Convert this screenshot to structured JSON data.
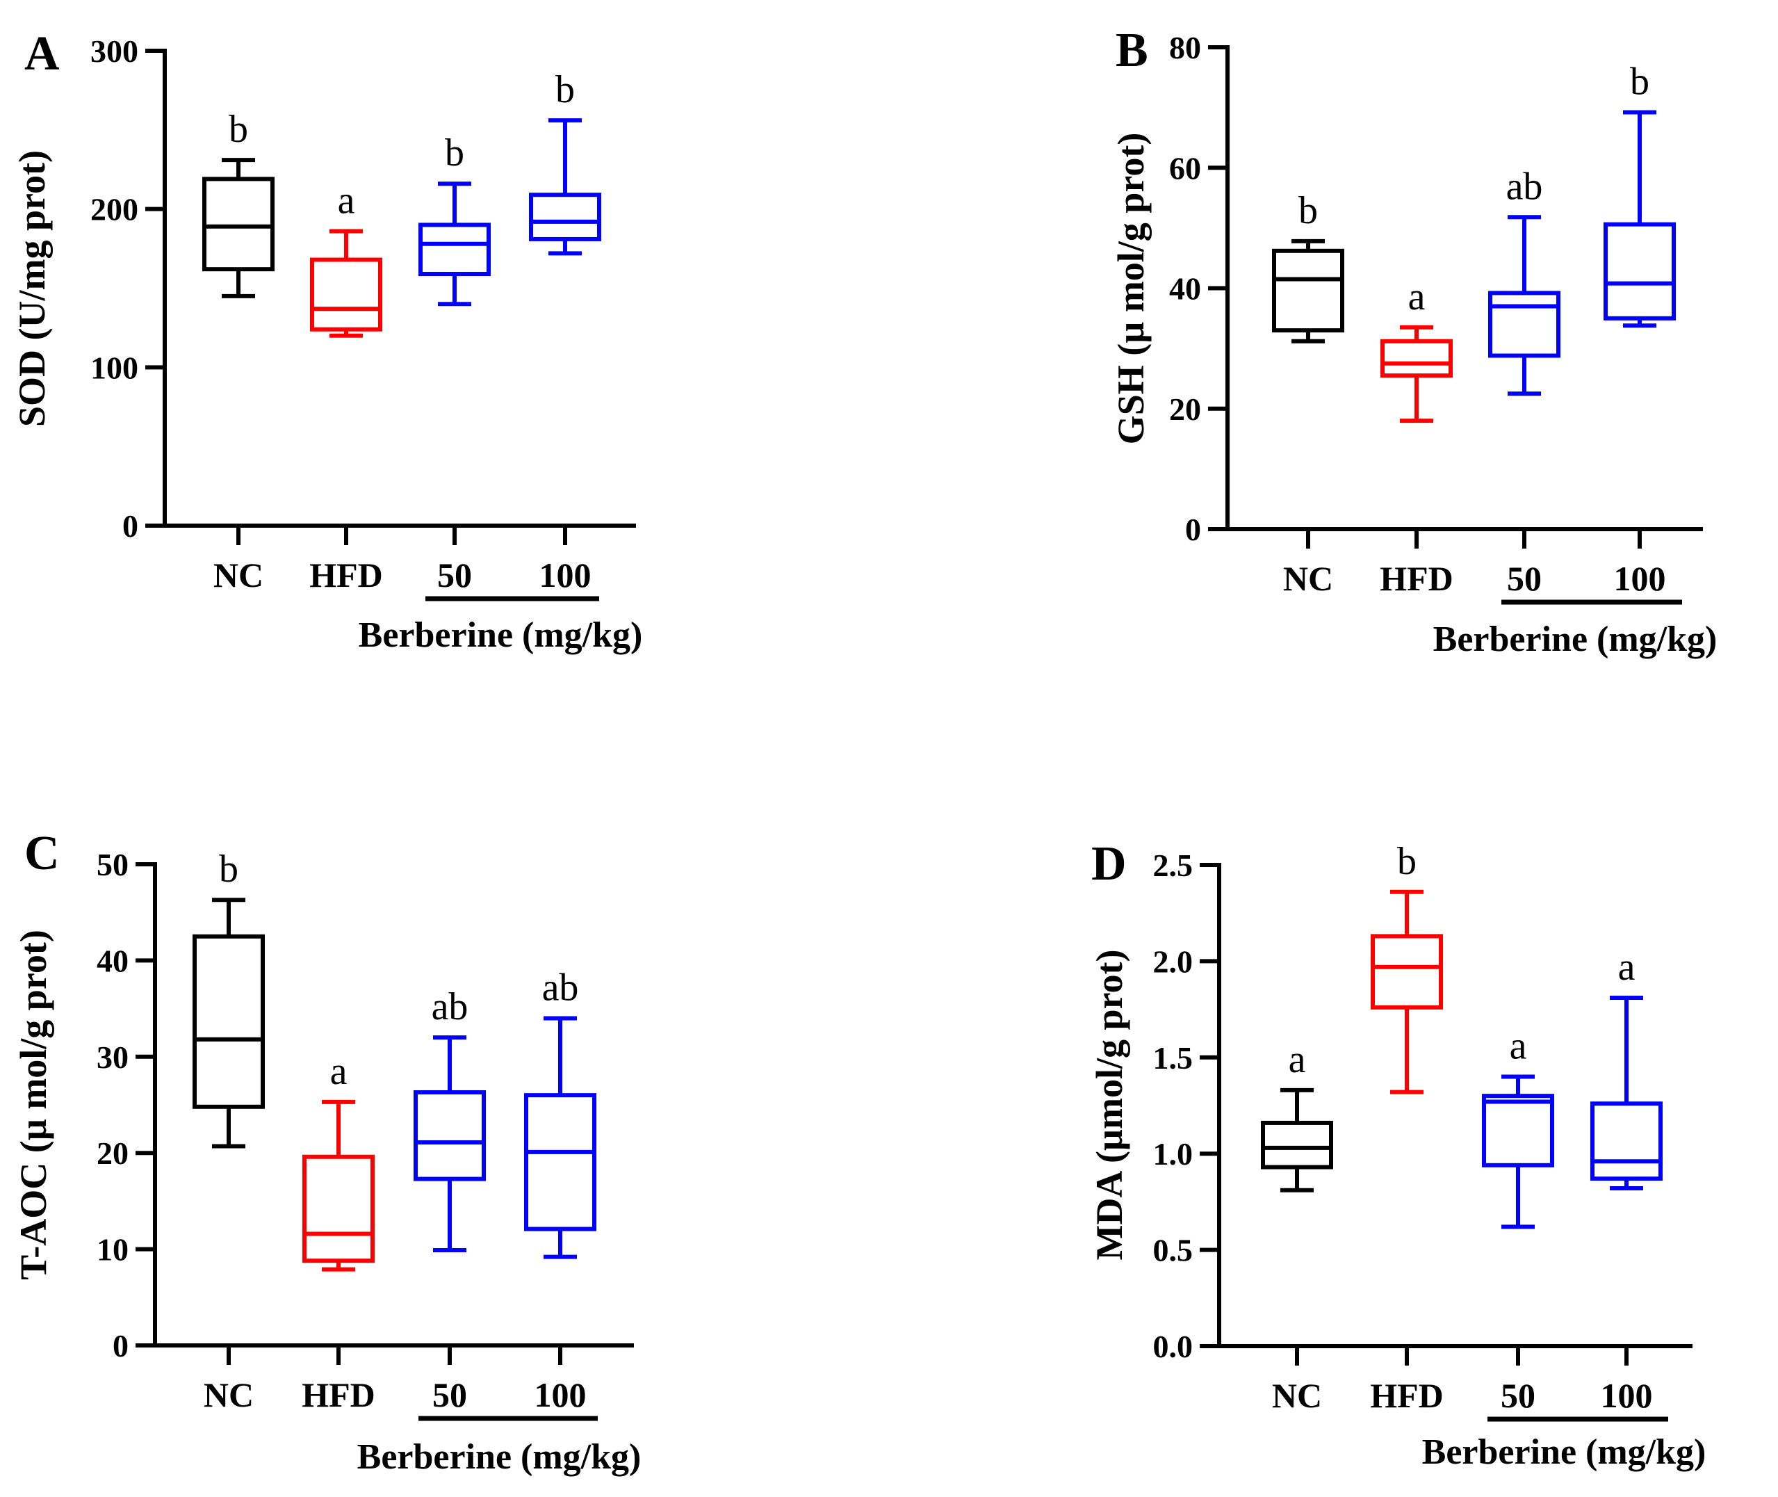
{
  "chart_data": [
    {
      "type": "box",
      "panel": "A",
      "ylabel": "SOD (U/mg prot)",
      "ylim": [
        0,
        300
      ],
      "yticks": [
        "0",
        "100",
        "200",
        "300"
      ],
      "categories": [
        "NC",
        "HFD",
        "50",
        "100"
      ],
      "group_label": "Berberine (mg/kg)",
      "grouped_categories": [
        "50",
        "100"
      ],
      "series": [
        {
          "name": "NC",
          "color": "#000000",
          "min": 145,
          "q1": 162,
          "median": 189,
          "q3": 219,
          "max": 231,
          "label": "b"
        },
        {
          "name": "HFD",
          "color": "#ff0000",
          "min": 120,
          "q1": 124,
          "median": 137,
          "q3": 168,
          "max": 186,
          "label": "a"
        },
        {
          "name": "50",
          "color": "#0000ff",
          "min": 140,
          "q1": 159,
          "median": 178,
          "q3": 190,
          "max": 216,
          "label": "b"
        },
        {
          "name": "100",
          "color": "#0000ff",
          "min": 172,
          "q1": 181,
          "median": 192,
          "q3": 209,
          "max": 256,
          "label": "b"
        }
      ]
    },
    {
      "type": "box",
      "panel": "B",
      "ylabel": "GSH (µ mol/g prot)",
      "ylim": [
        0,
        80
      ],
      "yticks": [
        "0",
        "20",
        "40",
        "60",
        "80"
      ],
      "categories": [
        "NC",
        "HFD",
        "50",
        "100"
      ],
      "group_label": "Berberine (mg/kg)",
      "grouped_categories": [
        "50",
        "100"
      ],
      "series": [
        {
          "name": "NC",
          "color": "#000000",
          "min": 31.2,
          "q1": 33.0,
          "median": 41.5,
          "q3": 46.2,
          "max": 47.8,
          "label": "b"
        },
        {
          "name": "HFD",
          "color": "#ff0000",
          "min": 18.0,
          "q1": 25.5,
          "median": 27.5,
          "q3": 31.2,
          "max": 33.5,
          "label": "a"
        },
        {
          "name": "50",
          "color": "#0000ff",
          "min": 22.5,
          "q1": 28.8,
          "median": 37.0,
          "q3": 39.2,
          "max": 51.8,
          "label": "ab"
        },
        {
          "name": "100",
          "color": "#0000ff",
          "min": 33.8,
          "q1": 35.0,
          "median": 40.8,
          "q3": 50.6,
          "max": 69.2,
          "label": "b"
        }
      ]
    },
    {
      "type": "box",
      "panel": "C",
      "ylabel": "T-AOC (µ mol/g prot)",
      "ylim": [
        0,
        50
      ],
      "yticks": [
        "0",
        "10",
        "20",
        "30",
        "40",
        "50"
      ],
      "categories": [
        "NC",
        "HFD",
        "50",
        "100"
      ],
      "group_label": "Berberine (mg/kg)",
      "grouped_categories": [
        "50",
        "100"
      ],
      "series": [
        {
          "name": "NC",
          "color": "#000000",
          "min": 20.7,
          "q1": 24.8,
          "median": 31.8,
          "q3": 42.5,
          "max": 46.3,
          "label": "b"
        },
        {
          "name": "HFD",
          "color": "#ff0000",
          "min": 7.9,
          "q1": 8.8,
          "median": 11.6,
          "q3": 19.6,
          "max": 25.3,
          "label": "a"
        },
        {
          "name": "50",
          "color": "#0000ff",
          "min": 9.9,
          "q1": 17.3,
          "median": 21.1,
          "q3": 26.3,
          "max": 32.0,
          "label": "ab"
        },
        {
          "name": "100",
          "color": "#0000ff",
          "min": 9.2,
          "q1": 12.1,
          "median": 20.1,
          "q3": 26.0,
          "max": 34.0,
          "label": "ab"
        }
      ]
    },
    {
      "type": "box",
      "panel": "D",
      "ylabel": "MDA (µmol/g prot)",
      "ylim": [
        0,
        2.5
      ],
      "yticks": [
        "0.0",
        "0.5",
        "1.0",
        "1.5",
        "2.0",
        "2.5"
      ],
      "categories": [
        "NC",
        "HFD",
        "50",
        "100"
      ],
      "group_label": "Berberine (mg/kg)",
      "grouped_categories": [
        "50",
        "100"
      ],
      "series": [
        {
          "name": "NC",
          "color": "#000000",
          "min": 0.81,
          "q1": 0.93,
          "median": 1.03,
          "q3": 1.16,
          "max": 1.33,
          "label": "a"
        },
        {
          "name": "HFD",
          "color": "#ff0000",
          "min": 1.32,
          "q1": 1.76,
          "median": 1.97,
          "q3": 2.13,
          "max": 2.36,
          "label": "b"
        },
        {
          "name": "50",
          "color": "#0000ff",
          "min": 0.62,
          "q1": 0.94,
          "median": 1.27,
          "q3": 1.3,
          "max": 1.4,
          "label": "a"
        },
        {
          "name": "100",
          "color": "#0000ff",
          "min": 0.82,
          "q1": 0.87,
          "median": 0.96,
          "q3": 1.26,
          "max": 1.81,
          "label": "a"
        }
      ]
    }
  ]
}
